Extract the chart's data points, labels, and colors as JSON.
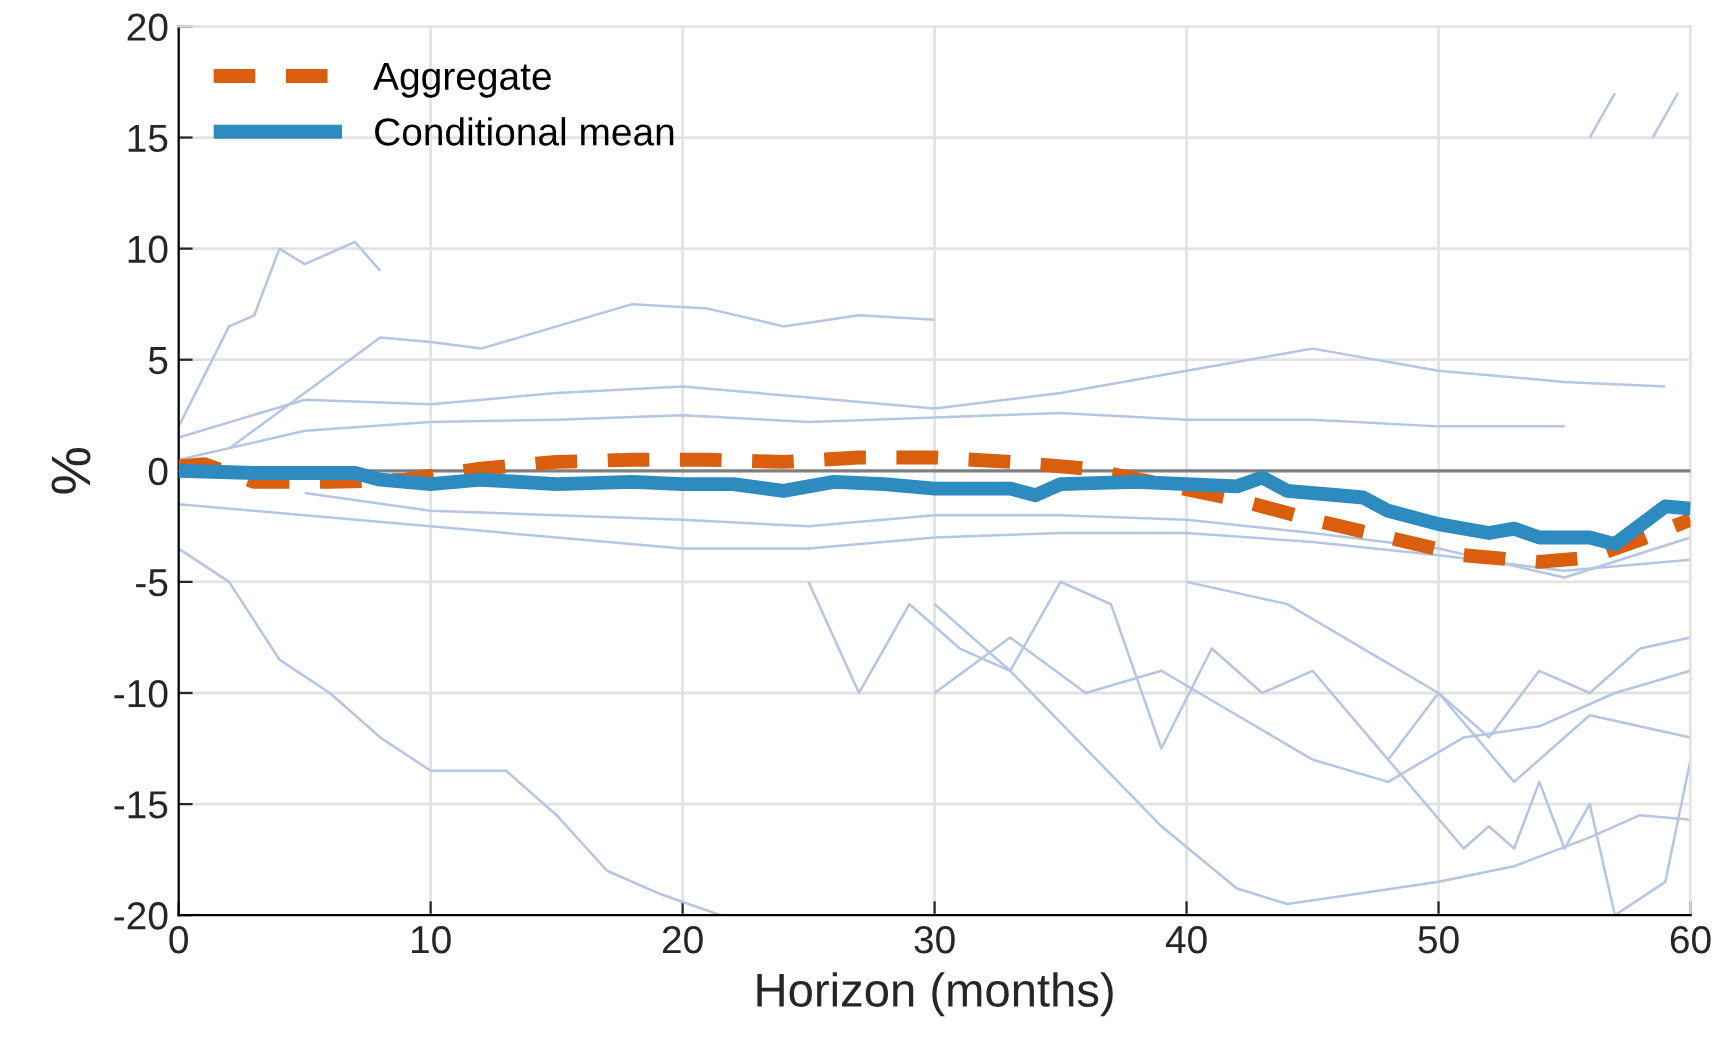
{
  "chart_data": {
    "type": "line",
    "xlabel": "Horizon (months)",
    "ylabel": "%",
    "xlim": [
      0,
      60
    ],
    "ylim": [
      -20,
      20
    ],
    "xticks": [
      0,
      10,
      20,
      30,
      40,
      50,
      60
    ],
    "yticks": [
      -20,
      -15,
      -10,
      -5,
      0,
      5,
      10,
      15,
      20
    ],
    "grid": true,
    "legend": "top left",
    "ref_lines": [
      {
        "axis": "y",
        "value": 0,
        "color": "#808080"
      }
    ],
    "series": [
      {
        "color": "#b4c6e4",
        "x": [
          0,
          2,
          4,
          6,
          8,
          10,
          13,
          15,
          17,
          19,
          21.5
        ],
        "values": [
          -3.5,
          -5,
          -8.5,
          -10,
          -12,
          -13.5,
          -13.5,
          -15.5,
          -18,
          -19,
          -20
        ]
      },
      {
        "color": "#b4c6e4",
        "x": [
          30,
          33,
          36,
          39,
          42,
          44,
          47,
          50,
          53,
          56,
          58,
          60
        ],
        "values": [
          -6,
          -9,
          -12.5,
          -16,
          -18.8,
          -19.5,
          -19,
          -18.5,
          -17.8,
          -16.5,
          -15.5,
          -15.7
        ]
      },
      {
        "color": "#b4c6e4",
        "x": [
          0,
          2,
          3,
          4,
          5,
          7,
          8
        ],
        "values": [
          2,
          6.5,
          7,
          10,
          9.3,
          10.3,
          9
        ]
      },
      {
        "color": "#b4c6e4",
        "x": [
          2,
          5,
          8,
          10,
          12,
          15,
          18,
          21,
          24,
          27,
          30
        ],
        "values": [
          1,
          3.5,
          6,
          5.8,
          5.5,
          6.5,
          7.5,
          7.3,
          6.5,
          7,
          6.8
        ]
      },
      {
        "color": "#b4c6e4",
        "x": [
          0,
          5,
          10,
          15,
          20,
          25,
          30,
          35,
          40,
          45,
          50,
          55,
          59
        ],
        "values": [
          1.5,
          3.2,
          3,
          3.5,
          3.8,
          3.3,
          2.8,
          3.5,
          4.5,
          5.5,
          4.5,
          4,
          3.8
        ]
      },
      {
        "color": "#b4c6e4",
        "x": [
          0,
          5,
          10,
          15,
          20,
          25,
          30,
          35,
          40,
          45,
          50,
          55
        ],
        "values": [
          0.5,
          1.8,
          2.2,
          2.3,
          2.5,
          2.2,
          2.4,
          2.6,
          2.3,
          2.3,
          2,
          2
        ]
      },
      {
        "color": "#b4c6e4",
        "x": [
          0,
          5,
          10,
          15,
          20,
          25,
          30,
          35,
          40,
          45,
          50,
          55,
          60
        ],
        "values": [
          -1.5,
          -2,
          -2.5,
          -3,
          -3.5,
          -3.5,
          -3,
          -2.8,
          -2.8,
          -3.2,
          -3.8,
          -4.5,
          -4
        ]
      },
      {
        "color": "#b4c6e4",
        "x": [
          5,
          10,
          15,
          20,
          25,
          30,
          35,
          40,
          45,
          50,
          55,
          60
        ],
        "values": [
          -1,
          -1.8,
          -2,
          -2.2,
          -2.5,
          -2,
          -2,
          -2.2,
          -2.8,
          -3.5,
          -4.8,
          -3
        ]
      },
      {
        "color": "#b4c6e4",
        "x": [
          25,
          27,
          29,
          31,
          33,
          35,
          37,
          39,
          41,
          43,
          45,
          48,
          50,
          53,
          56,
          60
        ],
        "values": [
          -5,
          -10,
          -6,
          -8,
          -9,
          -5,
          -6,
          -12.5,
          -8,
          -10,
          -9,
          -13,
          -10,
          -14,
          -11,
          -12
        ]
      },
      {
        "color": "#b4c6e4",
        "x": [
          30,
          33,
          36,
          39,
          42,
          45,
          48,
          51,
          54,
          57,
          60
        ],
        "values": [
          -10,
          -7.5,
          -10,
          -9,
          -11,
          -13,
          -14,
          -12,
          -11.5,
          -10,
          -9
        ]
      },
      {
        "color": "#b4c6e4",
        "x": [
          40,
          44,
          47,
          50,
          52,
          54,
          56,
          58,
          60
        ],
        "values": [
          -5,
          -6,
          -8,
          -10,
          -12,
          -9,
          -10,
          -8,
          -7.5
        ]
      },
      {
        "color": "#b4c6e4",
        "x": [
          48,
          51,
          52,
          53,
          54,
          55,
          56,
          57,
          59,
          60
        ],
        "values": [
          -13,
          -17,
          -16,
          -17,
          -14,
          -17,
          -15,
          -20,
          -18.5,
          -13
        ]
      },
      {
        "color": "#b4c6e4",
        "x": [
          56,
          57
        ],
        "values": [
          15,
          17
        ]
      },
      {
        "color": "#b4c6e4",
        "x": [
          58.5,
          59.5
        ],
        "values": [
          15,
          17
        ]
      },
      {
        "name": "Aggregate",
        "color": "#d95f0e",
        "line_style": "dashed",
        "x": [
          0,
          1,
          3,
          6,
          9,
          12,
          15,
          18,
          21,
          24,
          27,
          30,
          33,
          36,
          39,
          42,
          45,
          48,
          51,
          54,
          56,
          58,
          60
        ],
        "values": [
          0.2,
          0.3,
          -0.5,
          -0.5,
          -0.4,
          0.1,
          0.4,
          0.5,
          0.5,
          0.4,
          0.6,
          0.6,
          0.4,
          0.1,
          -0.6,
          -1.3,
          -2.2,
          -3,
          -3.8,
          -4.1,
          -3.9,
          -3.1,
          -2.2
        ]
      },
      {
        "name": "Conditional mean",
        "color": "#2e8bc0",
        "line_style": "solid",
        "x": [
          0,
          3,
          7,
          8,
          10,
          12,
          15,
          18,
          20,
          22,
          24,
          26,
          28,
          30,
          32,
          33,
          34,
          35,
          38,
          40,
          42,
          43,
          44,
          46,
          47,
          48,
          50,
          52,
          53,
          54,
          56,
          57,
          59,
          60
        ],
        "values": [
          0,
          -0.1,
          -0.1,
          -0.4,
          -0.6,
          -0.4,
          -0.6,
          -0.5,
          -0.6,
          -0.6,
          -0.9,
          -0.5,
          -0.6,
          -0.8,
          -0.8,
          -0.8,
          -1.1,
          -0.6,
          -0.5,
          -0.6,
          -0.7,
          -0.3,
          -0.9,
          -1.1,
          -1.2,
          -1.8,
          -2.4,
          -2.8,
          -2.6,
          -3,
          -3,
          -3.3,
          -1.6,
          -1.7
        ]
      }
    ]
  }
}
